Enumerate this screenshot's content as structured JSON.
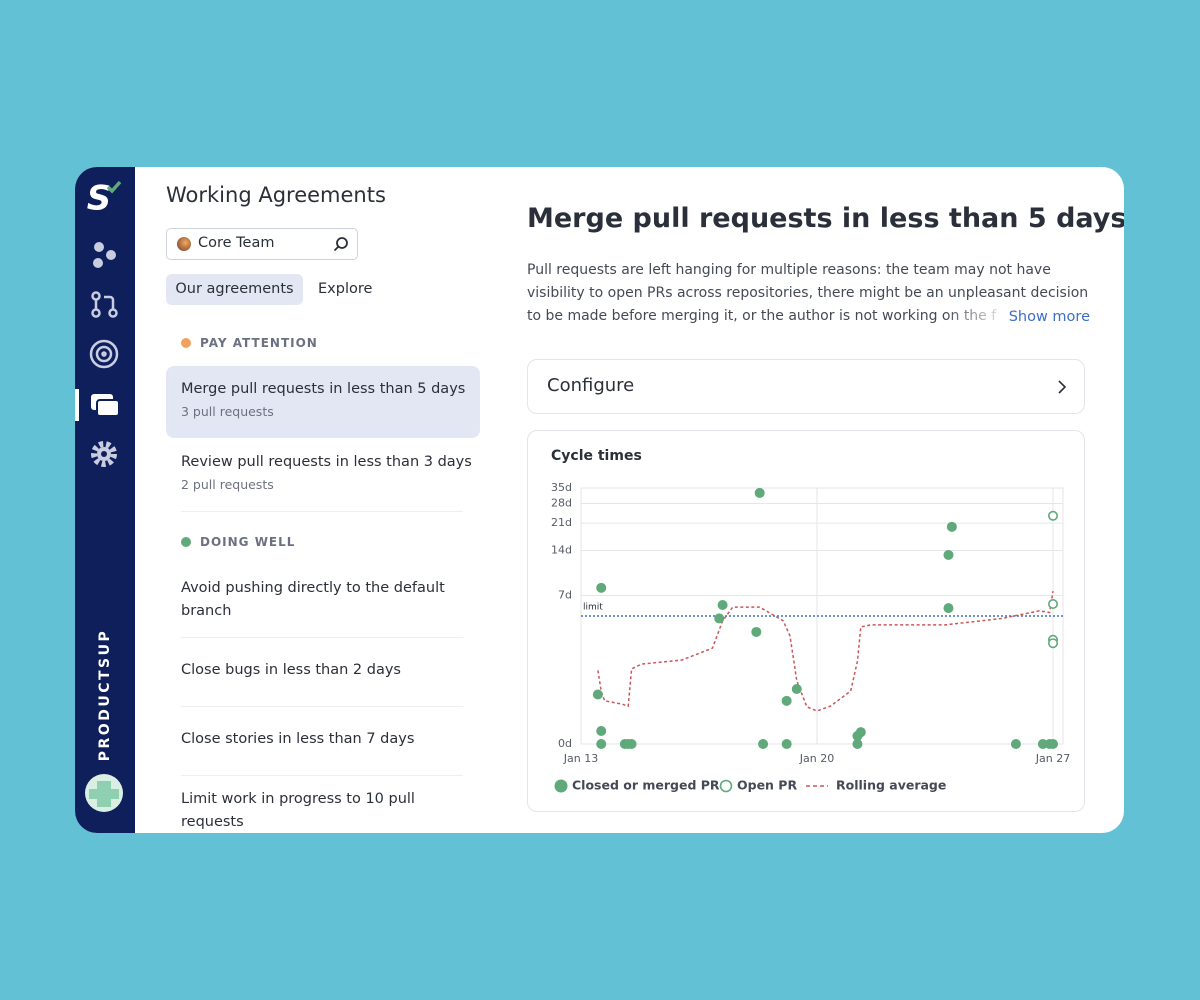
{
  "sidebar": {
    "brand": "PRODUCTSUP"
  },
  "agreements": {
    "title": "Working Agreements",
    "team": "Core Team",
    "tabs": [
      "Our agreements",
      "Explore"
    ],
    "groups": [
      {
        "label": "PAY ATTENTION",
        "color": "#f0a35e",
        "items": [
          {
            "title": "Merge pull requests in less than 5 days",
            "subtitle": "3 pull requests"
          },
          {
            "title": "Review pull requests in less than 3 days",
            "subtitle": "2 pull requests"
          }
        ]
      },
      {
        "label": "DOING WELL",
        "color": "#5fa97a",
        "items": [
          {
            "title": "Avoid pushing directly to the default branch"
          },
          {
            "title": "Close bugs in less than 2 days"
          },
          {
            "title": "Close stories in less than 7 days"
          },
          {
            "title": "Limit work in progress to 10 pull requests"
          }
        ]
      }
    ]
  },
  "detail": {
    "title": "Merge pull requests in less than 5 days",
    "description": "Pull requests are left hanging for multiple reasons: the team may not have visibility to open PRs across repositories, there might be an unpleasant decision to be made before merging it, or the author is not working on the f",
    "show_more": "Show more",
    "configure": "Configure"
  },
  "chart_data": {
    "type": "scatter",
    "title": "Cycle times",
    "yscale": "log1p",
    "grid": true,
    "xlim": [
      13,
      27
    ],
    "xticks": [
      {
        "value": 13,
        "label": "Jan 13"
      },
      {
        "value": 20,
        "label": "Jan 20"
      },
      {
        "value": 27,
        "label": "Jan 27"
      }
    ],
    "ylim": [
      0,
      35
    ],
    "yticks": [
      {
        "value": 0,
        "label": "0d"
      },
      {
        "value": 7,
        "label": "7d"
      },
      {
        "value": 14,
        "label": "14d"
      },
      {
        "value": 21,
        "label": "21d"
      },
      {
        "value": 28,
        "label": "28d"
      },
      {
        "value": 35,
        "label": "35d"
      }
    ],
    "limit": {
      "label": "limit",
      "value": 5,
      "color": "#3c6fd0"
    },
    "series": [
      {
        "name": "Closed or merged PR",
        "style": "filled",
        "color": "#5fa97a",
        "x": [
          13.5,
          13.6,
          13.6,
          13.6,
          14.3,
          14.4,
          14.5,
          17.1,
          17.2,
          18.2,
          18.3,
          18.4,
          19.1,
          19.1,
          19.4,
          21.2,
          21.2,
          21.3,
          23.9,
          23.9,
          24.0,
          25.9,
          26.7,
          26.9,
          27.0
        ],
        "values": [
          1.0,
          7.9,
          0.2,
          0,
          0,
          0,
          0,
          4.8,
          6.0,
          3.8,
          32.6,
          0,
          0.83,
          0,
          1.16,
          0,
          0.12,
          0.18,
          5.7,
          13.1,
          19.9,
          0,
          0,
          0,
          0
        ]
      },
      {
        "name": "Open PR",
        "style": "hollow",
        "color": "#5fa97a",
        "x": [
          27.0,
          27.0,
          27.0,
          27.0
        ],
        "values": [
          23.4,
          6.1,
          3.3,
          3.1
        ]
      },
      {
        "name": "Rolling average",
        "style": "dashed-line",
        "color": "#c9575a",
        "x": [
          13.5,
          13.6,
          13.7,
          14.2,
          14.4,
          14.5,
          14.8,
          16.0,
          16.9,
          17.2,
          17.5,
          18.3,
          19.0,
          19.2,
          19.4,
          19.7,
          20.0,
          20.4,
          21.0,
          21.2,
          21.3,
          21.6,
          23.8,
          25.5,
          26.6,
          26.9,
          27.0
        ],
        "values": [
          1.8,
          1.1,
          0.83,
          0.75,
          0.7,
          1.86,
          2.06,
          2.24,
          2.83,
          4.6,
          5.8,
          5.8,
          4.6,
          3.54,
          1.42,
          0.68,
          0.59,
          0.7,
          1.1,
          2.2,
          4.15,
          4.3,
          4.3,
          4.8,
          5.45,
          5.3,
          7.5
        ]
      }
    ]
  }
}
